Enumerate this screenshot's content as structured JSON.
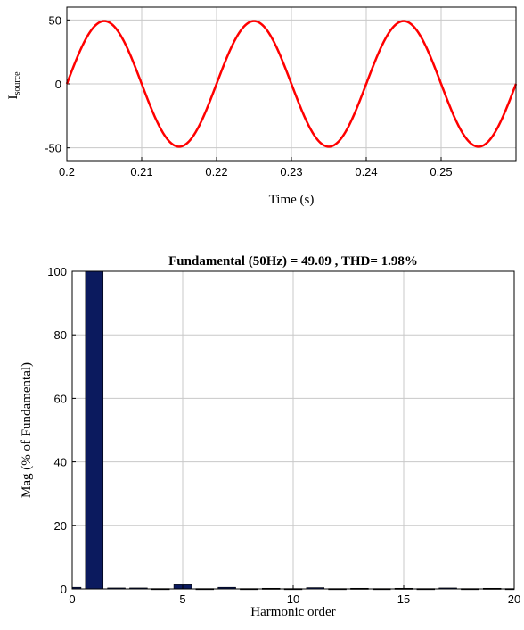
{
  "chart_data": [
    {
      "type": "line",
      "xlabel": "Time (s)",
      "ylabel_main": "I",
      "ylabel_sub": "source",
      "xlim": [
        0.2,
        0.26
      ],
      "ylim": [
        -60,
        60
      ],
      "xticks": [
        0.2,
        0.21,
        0.22,
        0.23,
        0.24,
        0.25
      ],
      "xtick_labels": [
        "0.2",
        "0.21",
        "0.22",
        "0.23",
        "0.24",
        "0.25"
      ],
      "yticks": [
        -50,
        0,
        50
      ],
      "ytick_labels": [
        "-50",
        "0",
        "50"
      ],
      "grid": true,
      "series": [
        {
          "color": "#ff0000",
          "amplitude": 49.09,
          "frequency_hz": 50,
          "x": [
            0.2,
            0.2025,
            0.205,
            0.2075,
            0.21,
            0.2125,
            0.215,
            0.2175,
            0.22,
            0.2225,
            0.225,
            0.2275,
            0.23,
            0.2325,
            0.235,
            0.2375,
            0.24,
            0.2425,
            0.245,
            0.2475,
            0.25,
            0.2525,
            0.255,
            0.2575,
            0.26
          ],
          "y": [
            0,
            34.7,
            49.1,
            34.7,
            0,
            -34.7,
            -49.1,
            -34.7,
            0,
            34.7,
            49.1,
            34.7,
            0,
            -34.7,
            -49.1,
            -34.7,
            0,
            34.7,
            49.1,
            34.7,
            0,
            -34.7,
            -49.1,
            -34.7,
            0
          ]
        }
      ]
    },
    {
      "type": "bar",
      "title": "Fundamental (50Hz) = 49.09 , THD= 1.98%",
      "xlabel": "Harmonic order",
      "ylabel": "Mag (% of Fundamental)",
      "xlim": [
        0,
        20
      ],
      "ylim": [
        0,
        100
      ],
      "xticks": [
        0,
        5,
        10,
        15,
        20
      ],
      "xtick_labels": [
        "0",
        "5",
        "10",
        "15",
        "20"
      ],
      "yticks": [
        0,
        20,
        40,
        60,
        80,
        100
      ],
      "ytick_labels": [
        "0",
        "20",
        "40",
        "60",
        "80",
        "100"
      ],
      "grid": true,
      "bar_color": "#0b1a5e",
      "categories": [
        0,
        1,
        2,
        3,
        4,
        5,
        6,
        7,
        8,
        9,
        10,
        11,
        12,
        13,
        14,
        15,
        16,
        17,
        18,
        19,
        20
      ],
      "values": [
        0.5,
        100,
        0.3,
        0.3,
        0.1,
        1.3,
        0.1,
        0.5,
        0.1,
        0.2,
        0.1,
        0.4,
        0.1,
        0.2,
        0.1,
        0.2,
        0.1,
        0.3,
        0.1,
        0.2,
        0.1
      ]
    }
  ]
}
